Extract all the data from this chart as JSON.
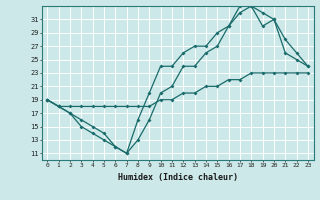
{
  "xlabel": "Humidex (Indice chaleur)",
  "ylabel": "",
  "bg_color": "#cce8e8",
  "line_color": "#1a6b6b",
  "grid_color": "#b0d4d4",
  "xlim": [
    -0.5,
    23.5
  ],
  "ylim": [
    10,
    33
  ],
  "yticks": [
    11,
    13,
    15,
    17,
    19,
    21,
    23,
    25,
    27,
    29,
    31
  ],
  "xticks": [
    0,
    1,
    2,
    3,
    4,
    5,
    6,
    7,
    8,
    9,
    10,
    11,
    12,
    13,
    14,
    15,
    16,
    17,
    18,
    19,
    20,
    21,
    22,
    23
  ],
  "line1_x": [
    0,
    1,
    2,
    3,
    4,
    5,
    6,
    7,
    8,
    9,
    10,
    11,
    12,
    13,
    14,
    15,
    16,
    17,
    18,
    19,
    20,
    21,
    22,
    23
  ],
  "line1_y": [
    19,
    18,
    17,
    16,
    15,
    14,
    12,
    11,
    13,
    16,
    20,
    21,
    24,
    24,
    26,
    27,
    30,
    32,
    33,
    32,
    31,
    28,
    26,
    24
  ],
  "line2_x": [
    0,
    1,
    2,
    3,
    4,
    5,
    6,
    7,
    8,
    9,
    10,
    11,
    12,
    13,
    14,
    15,
    16,
    17,
    18,
    19,
    20,
    21,
    22,
    23
  ],
  "line2_y": [
    19,
    18,
    17,
    15,
    14,
    13,
    12,
    11,
    16,
    20,
    24,
    24,
    26,
    27,
    27,
    29,
    30,
    33,
    33,
    30,
    31,
    26,
    25,
    24
  ],
  "line3_x": [
    0,
    1,
    2,
    3,
    4,
    5,
    6,
    7,
    8,
    9,
    10,
    11,
    12,
    13,
    14,
    15,
    16,
    17,
    18,
    19,
    20,
    21,
    22,
    23
  ],
  "line3_y": [
    19,
    18,
    18,
    18,
    18,
    18,
    18,
    18,
    18,
    18,
    19,
    19,
    20,
    20,
    21,
    21,
    22,
    22,
    23,
    23,
    23,
    23,
    23,
    23
  ]
}
